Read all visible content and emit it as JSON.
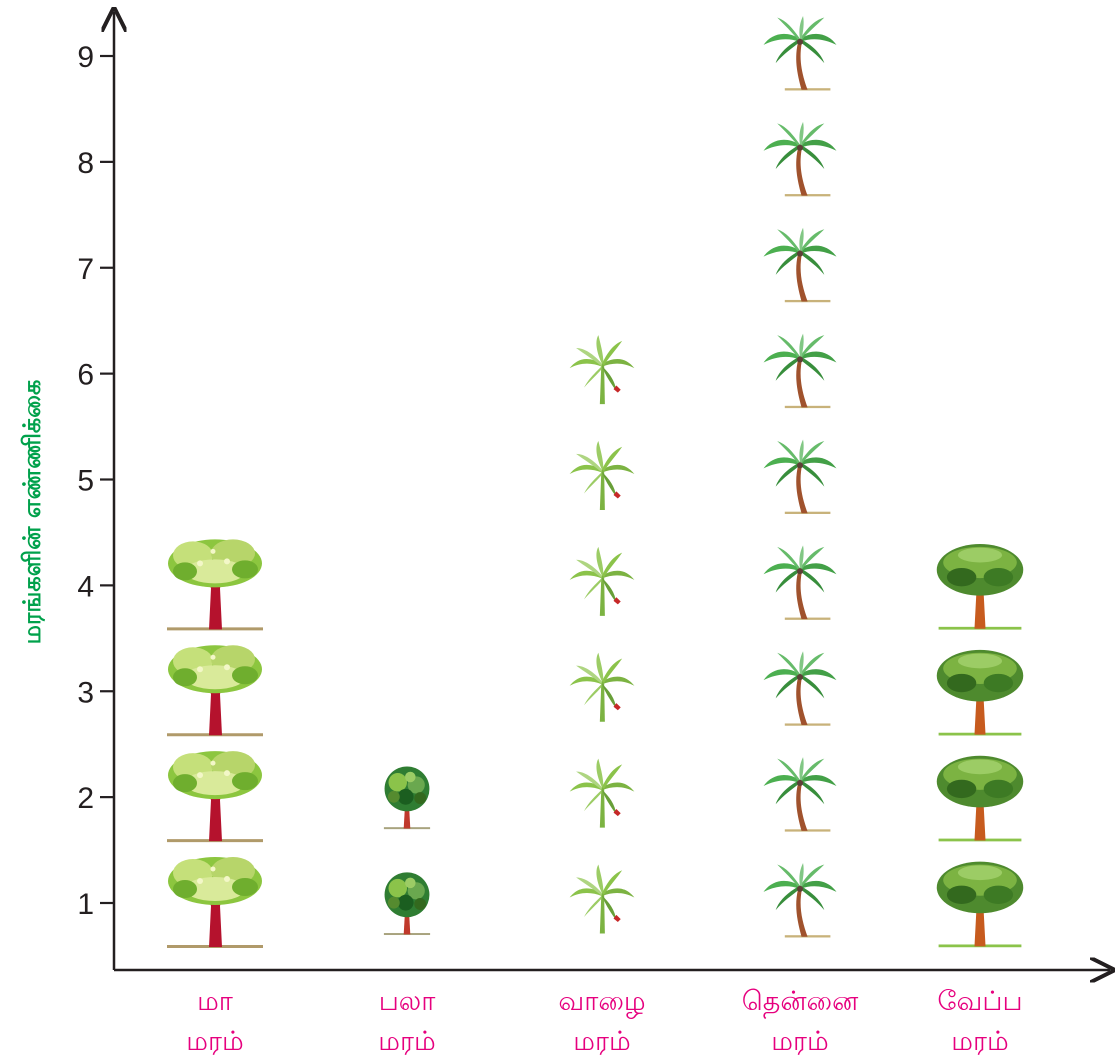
{
  "chart_data": {
    "type": "pictograph",
    "ylabel": "மரங்களின் எண்ணிக்கை",
    "xlabel": "",
    "ylim": [
      0.5,
      9.5
    ],
    "yticks": [
      1,
      2,
      3,
      4,
      5,
      6,
      7,
      8,
      9
    ],
    "categories": [
      {
        "line1": "மா",
        "line2": "மரம்",
        "value": 4,
        "icon": "mango-tree-icon"
      },
      {
        "line1": "பலா",
        "line2": "மரம்",
        "value": 2,
        "icon": "jackfruit-tree-icon"
      },
      {
        "line1": "வாழை",
        "line2": "மரம்",
        "value": 6,
        "icon": "banana-tree-icon"
      },
      {
        "line1": "தென்னை",
        "line2": "மரம்",
        "value": 9,
        "icon": "coconut-tree-icon"
      },
      {
        "line1": "வேப்ப",
        "line2": "மரம்",
        "value": 4,
        "icon": "neem-tree-icon"
      }
    ],
    "colors": {
      "axis": "#231f20",
      "category_label": "#e6007e",
      "ylabel": "#00a14b"
    }
  }
}
